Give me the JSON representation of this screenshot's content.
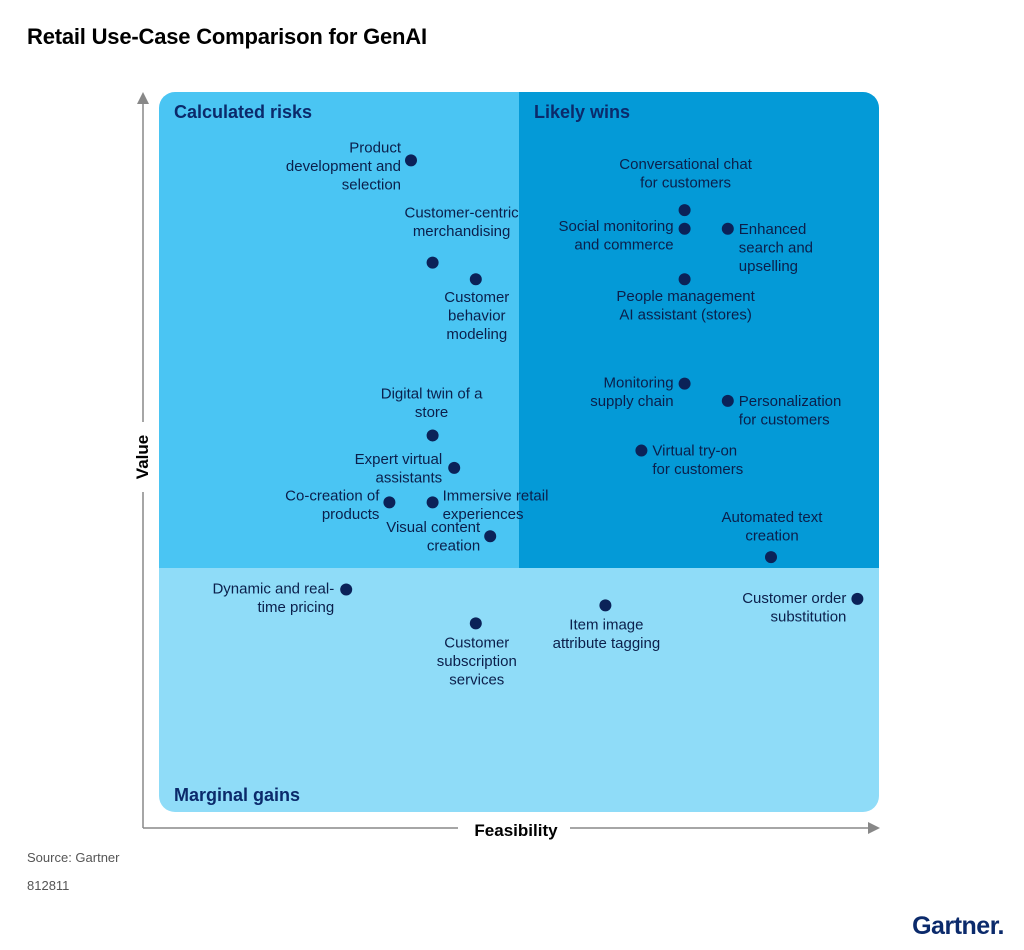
{
  "title": "Retail Use-Case Comparison for GenAI",
  "source": "Source: Gartner",
  "doc_id": "812811",
  "logo": "Gartner",
  "colors": {
    "calculated_risks": "#4ac5f3",
    "likely_wins": "#049ad7",
    "marginal_gains": "#8fdcf8",
    "dot": "#0b2258",
    "axis": "#888888"
  },
  "chart_data": {
    "type": "scatter",
    "xlabel": "Feasibility",
    "ylabel": "Value",
    "quadrants": [
      {
        "name": "Calculated risks",
        "position": "top-left"
      },
      {
        "name": "Likely wins",
        "position": "top-right"
      },
      {
        "name": "Marginal gains",
        "position": "bottom"
      }
    ],
    "points": [
      {
        "label": "Product development and selection",
        "lines": [
          "Product",
          "development and",
          "selection"
        ],
        "x": 0.35,
        "y": 0.905
      },
      {
        "label": "Customer-centric merchandising",
        "lines": [
          "Customer-centric",
          "merchandising"
        ],
        "x": 0.38,
        "y": 0.763
      },
      {
        "label": "Customer behavior modeling",
        "lines": [
          "Customer",
          "behavior",
          "modeling"
        ],
        "x": 0.44,
        "y": 0.74
      },
      {
        "label": "Digital twin of a store",
        "lines": [
          "Digital twin of a",
          "store"
        ],
        "x": 0.38,
        "y": 0.523
      },
      {
        "label": "Expert virtual assistants",
        "lines": [
          "Expert virtual",
          "assistants"
        ],
        "x": 0.41,
        "y": 0.478
      },
      {
        "label": "Co-creation of products",
        "lines": [
          "Co-creation of",
          "products"
        ],
        "x": 0.32,
        "y": 0.43
      },
      {
        "label": "Immersive retail experiences",
        "lines": [
          "Immersive retail",
          "experiences"
        ],
        "x": 0.38,
        "y": 0.43
      },
      {
        "label": "Visual content creation",
        "lines": [
          "Visual content",
          "creation"
        ],
        "x": 0.46,
        "y": 0.383
      },
      {
        "label": "Conversational chat for customers",
        "lines": [
          "Conversational chat",
          "for customers"
        ],
        "x": 0.73,
        "y": 0.836
      },
      {
        "label": "Social monitoring and commerce",
        "lines": [
          "Social monitoring",
          "and commerce"
        ],
        "x": 0.73,
        "y": 0.81
      },
      {
        "label": "Enhanced search and upselling",
        "lines": [
          "Enhanced",
          "search and",
          "upselling"
        ],
        "x": 0.79,
        "y": 0.81
      },
      {
        "label": "People management AI assistant (stores)",
        "lines": [
          "People management",
          "AI assistant (stores)"
        ],
        "x": 0.73,
        "y": 0.74
      },
      {
        "label": "Monitoring supply chain",
        "lines": [
          "Monitoring",
          "supply chain"
        ],
        "x": 0.73,
        "y": 0.595
      },
      {
        "label": "Personalization for customers",
        "lines": [
          "Personalization",
          "for customers"
        ],
        "x": 0.79,
        "y": 0.571
      },
      {
        "label": "Virtual try-on for customers",
        "lines": [
          "Virtual try-on",
          "for customers"
        ],
        "x": 0.67,
        "y": 0.502
      },
      {
        "label": "Automated text creation",
        "lines": [
          "Automated text",
          "creation"
        ],
        "x": 0.85,
        "y": 0.354
      },
      {
        "label": "Dynamic and real-time pricing",
        "lines": [
          "Dynamic and real-",
          "time pricing"
        ],
        "x": 0.26,
        "y": 0.309
      },
      {
        "label": "Customer subscription services",
        "lines": [
          "Customer",
          "subscription",
          "services"
        ],
        "x": 0.44,
        "y": 0.262
      },
      {
        "label": "Item image attribute tagging",
        "lines": [
          "Item image",
          "attribute tagging"
        ],
        "x": 0.62,
        "y": 0.287
      },
      {
        "label": "Customer order substitution",
        "lines": [
          "Customer order",
          "substitution"
        ],
        "x": 0.97,
        "y": 0.296
      }
    ]
  }
}
